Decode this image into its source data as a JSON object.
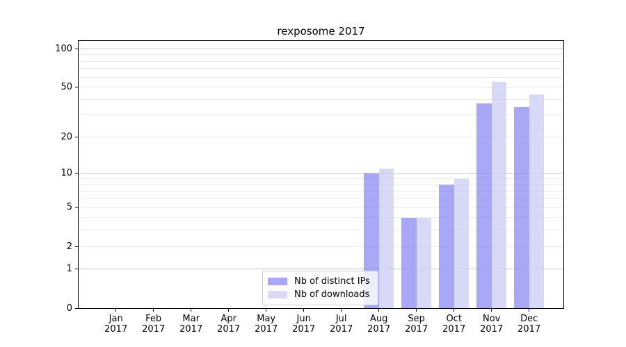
{
  "chart_data": {
    "type": "bar",
    "title": "rexposome 2017",
    "year_label": "2017",
    "categories": [
      "Jan",
      "Feb",
      "Mar",
      "Apr",
      "May",
      "Jun",
      "Jul",
      "Aug",
      "Sep",
      "Oct",
      "Nov",
      "Dec"
    ],
    "series": [
      {
        "name": "Nb of distinct IPs",
        "key": "distinct-ips",
        "color": "#8383f2",
        "alpha": 0.7,
        "color_over_white": "#a8a8f6",
        "values": [
          0,
          0,
          0,
          0,
          0,
          0,
          0,
          10,
          4,
          8,
          37,
          35
        ]
      },
      {
        "name": "Nb of downloads",
        "key": "downloads",
        "color": "#c7c7f4",
        "alpha": 0.7,
        "color_over_white": "#d8d8f7",
        "values": [
          0,
          0,
          0,
          0,
          0,
          0,
          0,
          11,
          4,
          9,
          55,
          44
        ]
      }
    ],
    "xlabel": "",
    "ylabel": "",
    "y_axis": {
      "scale": "log10(1+value)",
      "ticks": [
        0,
        1,
        2,
        5,
        10,
        20,
        50,
        100
      ],
      "max_value": 115,
      "major_gridlines": [
        1,
        10,
        100
      ],
      "minor_gridlines": [
        2,
        3,
        4,
        5,
        6,
        7,
        8,
        9,
        20,
        30,
        40,
        50,
        60,
        70,
        80,
        90
      ]
    },
    "grid": "on",
    "legend_position": "bottom-center"
  }
}
